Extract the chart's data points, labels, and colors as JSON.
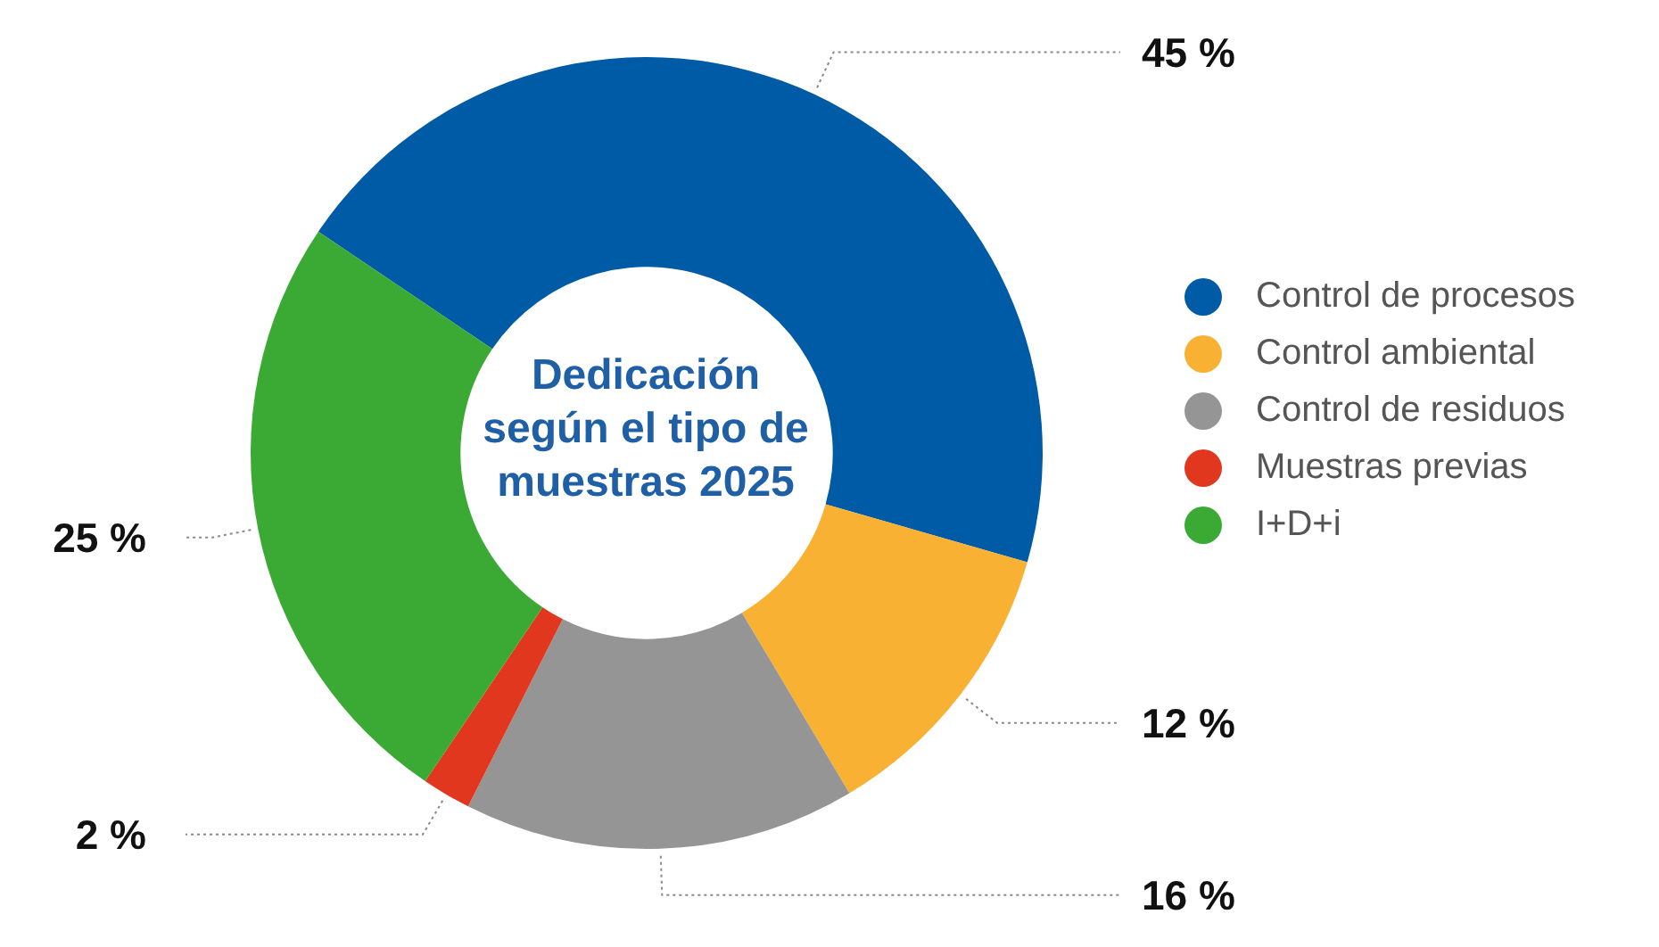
{
  "chart_data": {
    "type": "donut",
    "title": "Dedicación según el tipo de muestras 2025",
    "categories": [
      "Control de procesos",
      "Control ambiental",
      "Control de residuos",
      "Muestras previas",
      "I+D+i"
    ],
    "values": [
      45,
      12,
      16,
      2,
      25
    ],
    "colors": [
      "#005ba6",
      "#f8b133",
      "#959595",
      "#e2371f",
      "#3aaa35"
    ],
    "value_labels": [
      "45 %",
      "12 %",
      "16 %",
      "2 %",
      "25 %"
    ],
    "legend": "right"
  }
}
